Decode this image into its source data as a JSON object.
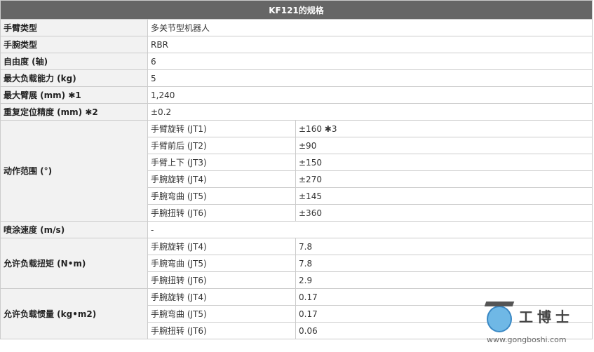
{
  "title": "KF121的规格",
  "rows": {
    "arm_type": {
      "label": "手臂类型",
      "value": "多关节型机器人"
    },
    "wrist_type": {
      "label": "手腕类型",
      "value": "RBR"
    },
    "dof": {
      "label": "自由度 (轴)",
      "value": "6"
    },
    "payload": {
      "label": "最大负载能力 (kg)",
      "value": "5"
    },
    "reach": {
      "label": "最大臂展 (mm) ✱1",
      "value": "1,240"
    },
    "repeatability": {
      "label": "重复定位精度 (mm) ✱2",
      "value": "±0.2"
    },
    "motion_range": {
      "label": "动作范围 (°)",
      "items": [
        {
          "axis": "手臂旋转 (JT1)",
          "value": "±160 ✱3"
        },
        {
          "axis": "手臂前后 (JT2)",
          "value": "±90"
        },
        {
          "axis": "手臂上下 (JT3)",
          "value": "±150"
        },
        {
          "axis": "手腕旋转 (JT4)",
          "value": "±270"
        },
        {
          "axis": "手腕弯曲 (JT5)",
          "value": "±145"
        },
        {
          "axis": "手腕扭转 (JT6)",
          "value": "±360"
        }
      ]
    },
    "spray_speed": {
      "label": "喷涂速度 (m/s)",
      "value": "-"
    },
    "torque": {
      "label": "允许负载扭矩 (N•m)",
      "items": [
        {
          "axis": "手腕旋转 (JT4)",
          "value": "7.8"
        },
        {
          "axis": "手腕弯曲 (JT5)",
          "value": "7.8"
        },
        {
          "axis": "手腕扭转 (JT6)",
          "value": "2.9"
        }
      ]
    },
    "inertia": {
      "label": "允许负载惯量 (kg•m2)",
      "items": [
        {
          "axis": "手腕旋转 (JT4)",
          "value": "0.17"
        },
        {
          "axis": "手腕弯曲 (JT5)",
          "value": "0.17"
        },
        {
          "axis": "手腕扭转 (JT6)",
          "value": "0.06"
        }
      ]
    }
  },
  "watermark": {
    "name": "工博士",
    "url": "www.gongboshi.com"
  }
}
